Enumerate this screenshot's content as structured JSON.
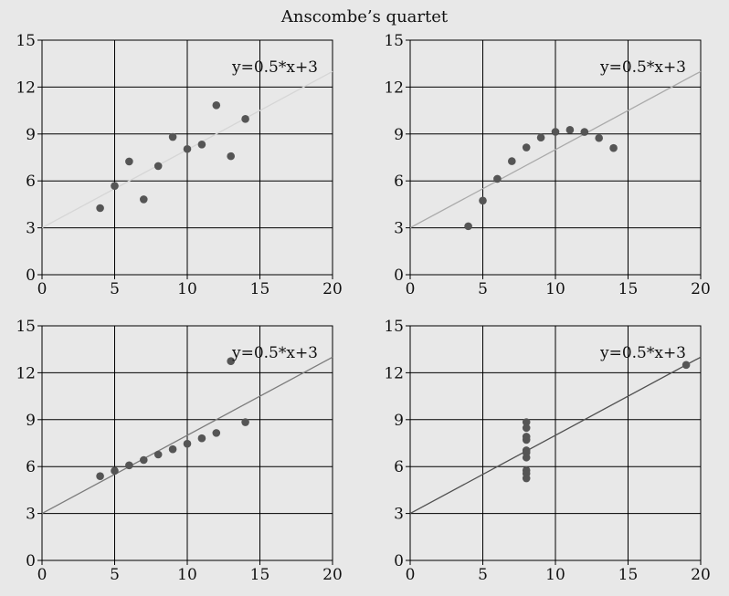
{
  "title": "Anscombe’s quartet",
  "colors": {
    "background": "#e8e8e8",
    "axis": "#000000",
    "grid": "#000000",
    "point": "#555555"
  },
  "chart_data": [
    {
      "type": "scatter",
      "panel": "top-left",
      "xlim": [
        0,
        20
      ],
      "ylim": [
        0,
        15
      ],
      "xticks": [
        0,
        5,
        10,
        15,
        20
      ],
      "yticks": [
        0,
        3,
        6,
        9,
        12,
        15
      ],
      "grid": true,
      "points": [
        [
          4,
          4.26
        ],
        [
          5,
          5.68
        ],
        [
          6,
          7.24
        ],
        [
          7,
          4.82
        ],
        [
          8,
          6.95
        ],
        [
          9,
          8.81
        ],
        [
          10,
          8.04
        ],
        [
          11,
          8.33
        ],
        [
          12,
          10.84
        ],
        [
          13,
          7.58
        ],
        [
          14,
          9.96
        ]
      ],
      "fit_line": {
        "label": "y=0.5*x+3",
        "slope": 0.5,
        "intercept": 3,
        "color": "#d6d6d6"
      }
    },
    {
      "type": "scatter",
      "panel": "top-right",
      "xlim": [
        0,
        20
      ],
      "ylim": [
        0,
        15
      ],
      "xticks": [
        0,
        5,
        10,
        15,
        20
      ],
      "yticks": [
        0,
        3,
        6,
        9,
        12,
        15
      ],
      "grid": true,
      "points": [
        [
          4,
          3.1
        ],
        [
          5,
          4.74
        ],
        [
          6,
          6.13
        ],
        [
          7,
          7.26
        ],
        [
          8,
          8.14
        ],
        [
          9,
          8.77
        ],
        [
          10,
          9.14
        ],
        [
          11,
          9.26
        ],
        [
          12,
          9.13
        ],
        [
          13,
          8.74
        ],
        [
          14,
          8.1
        ]
      ],
      "fit_line": {
        "label": "y=0.5*x+3",
        "slope": 0.5,
        "intercept": 3,
        "color": "#aaaaaa"
      }
    },
    {
      "type": "scatter",
      "panel": "bottom-left",
      "xlim": [
        0,
        20
      ],
      "ylim": [
        0,
        15
      ],
      "xticks": [
        0,
        5,
        10,
        15,
        20
      ],
      "yticks": [
        0,
        3,
        6,
        9,
        12,
        15
      ],
      "grid": true,
      "points": [
        [
          4,
          5.39
        ],
        [
          5,
          5.73
        ],
        [
          6,
          6.08
        ],
        [
          7,
          6.42
        ],
        [
          8,
          6.77
        ],
        [
          9,
          7.11
        ],
        [
          10,
          7.46
        ],
        [
          11,
          7.81
        ],
        [
          12,
          8.15
        ],
        [
          13,
          12.74
        ],
        [
          14,
          8.84
        ]
      ],
      "fit_line": {
        "label": "y=0.5*x+3",
        "slope": 0.5,
        "intercept": 3,
        "color": "#7c7c7c"
      }
    },
    {
      "type": "scatter",
      "panel": "bottom-right",
      "xlim": [
        0,
        20
      ],
      "ylim": [
        0,
        15
      ],
      "xticks": [
        0,
        5,
        10,
        15,
        20
      ],
      "yticks": [
        0,
        3,
        6,
        9,
        12,
        15
      ],
      "grid": true,
      "points": [
        [
          8,
          6.58
        ],
        [
          8,
          5.76
        ],
        [
          8,
          7.71
        ],
        [
          8,
          8.84
        ],
        [
          8,
          8.47
        ],
        [
          8,
          7.04
        ],
        [
          8,
          5.25
        ],
        [
          19,
          12.5
        ],
        [
          8,
          5.56
        ],
        [
          8,
          7.91
        ],
        [
          8,
          6.89
        ]
      ],
      "fit_line": {
        "label": "y=0.5*x+3",
        "slope": 0.5,
        "intercept": 3,
        "color": "#505050"
      }
    }
  ]
}
